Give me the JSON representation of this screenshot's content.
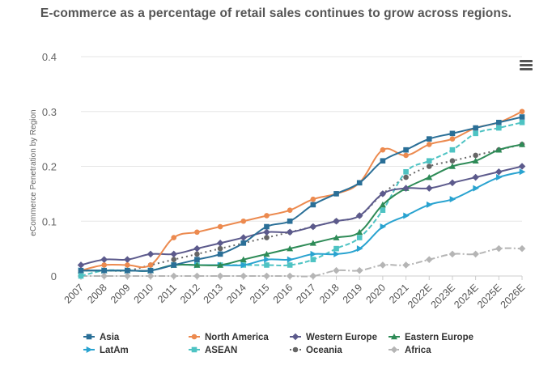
{
  "title": "E-commerce as a percentage of retail sales continues to grow across regions.",
  "menu": {
    "icon": "hamburger-menu-icon"
  },
  "chart_data": {
    "type": "line",
    "title": "E-commerce as a percentage of retail sales continues to grow across regions.",
    "xlabel": "",
    "ylabel": "eCommerce Penetration by Region",
    "ylim": [
      0,
      0.4
    ],
    "yticks": [
      "0",
      "0.1",
      "0.2",
      "0.3",
      "0.4"
    ],
    "grid": true,
    "legend": "bottom",
    "categories": [
      "2007",
      "2008",
      "2009",
      "2010",
      "2011",
      "2012",
      "2013",
      "2014",
      "2015",
      "2016",
      "2017",
      "2018",
      "2019",
      "2020",
      "2021",
      "2022E",
      "2023E",
      "2024E",
      "2025E",
      "2026E"
    ],
    "series": [
      {
        "name": "Asia",
        "color": "#2a6f97",
        "marker": "square",
        "dash": "solid",
        "values": [
          0.01,
          0.01,
          0.01,
          0.01,
          0.02,
          0.03,
          0.04,
          0.06,
          0.09,
          0.1,
          0.13,
          0.15,
          0.17,
          0.21,
          0.23,
          0.25,
          0.26,
          0.27,
          0.28,
          0.29
        ]
      },
      {
        "name": "North America",
        "color": "#ec8a4f",
        "marker": "circle",
        "dash": "solid",
        "values": [
          0.01,
          0.02,
          0.02,
          0.02,
          0.07,
          0.08,
          0.09,
          0.1,
          0.11,
          0.12,
          0.14,
          0.15,
          0.17,
          0.23,
          0.22,
          0.24,
          0.25,
          0.27,
          0.28,
          0.3
        ]
      },
      {
        "name": "Western Europe",
        "color": "#5c5a8c",
        "marker": "diamond",
        "dash": "solid",
        "values": [
          0.02,
          0.03,
          0.03,
          0.04,
          0.04,
          0.05,
          0.06,
          0.07,
          0.08,
          0.08,
          0.09,
          0.1,
          0.11,
          0.15,
          0.16,
          0.16,
          0.17,
          0.18,
          0.19,
          0.2
        ]
      },
      {
        "name": "Eastern Europe",
        "color": "#2e8b57",
        "marker": "triangle-up",
        "dash": "solid",
        "values": [
          0.01,
          0.01,
          0.01,
          0.01,
          0.02,
          0.02,
          0.02,
          0.03,
          0.04,
          0.05,
          0.06,
          0.07,
          0.08,
          0.13,
          0.16,
          0.18,
          0.2,
          0.21,
          0.23,
          0.24
        ]
      },
      {
        "name": "LatAm",
        "color": "#29a3d0",
        "marker": "triangle-right",
        "dash": "solid",
        "values": [
          0.01,
          0.01,
          0.01,
          0.01,
          0.02,
          0.02,
          0.02,
          0.02,
          0.03,
          0.03,
          0.04,
          0.04,
          0.05,
          0.09,
          0.11,
          0.13,
          0.14,
          0.16,
          0.18,
          0.19
        ]
      },
      {
        "name": "ASEAN",
        "color": "#4ec3c3",
        "marker": "square",
        "dash": "dash",
        "values": [
          0.0,
          0.01,
          0.01,
          0.01,
          0.02,
          0.02,
          0.02,
          0.02,
          0.02,
          0.02,
          0.03,
          0.05,
          0.07,
          0.12,
          0.19,
          0.21,
          0.23,
          0.26,
          0.27,
          0.28
        ]
      },
      {
        "name": "Oceania",
        "color": "#666666",
        "marker": "circle",
        "dash": "dot",
        "values": [
          0.01,
          0.01,
          0.01,
          0.02,
          0.03,
          0.04,
          0.05,
          0.06,
          0.07,
          0.08,
          0.09,
          0.1,
          0.11,
          0.15,
          0.18,
          0.2,
          0.21,
          0.22,
          0.23,
          0.24
        ]
      },
      {
        "name": "Africa",
        "color": "#b5b5b5",
        "marker": "diamond",
        "dash": "dashdot",
        "values": [
          0.0,
          0.0,
          0.0,
          0.0,
          0.0,
          0.0,
          0.0,
          0.0,
          0.0,
          0.0,
          0.0,
          0.01,
          0.01,
          0.02,
          0.02,
          0.03,
          0.04,
          0.04,
          0.05,
          0.05
        ]
      }
    ]
  }
}
